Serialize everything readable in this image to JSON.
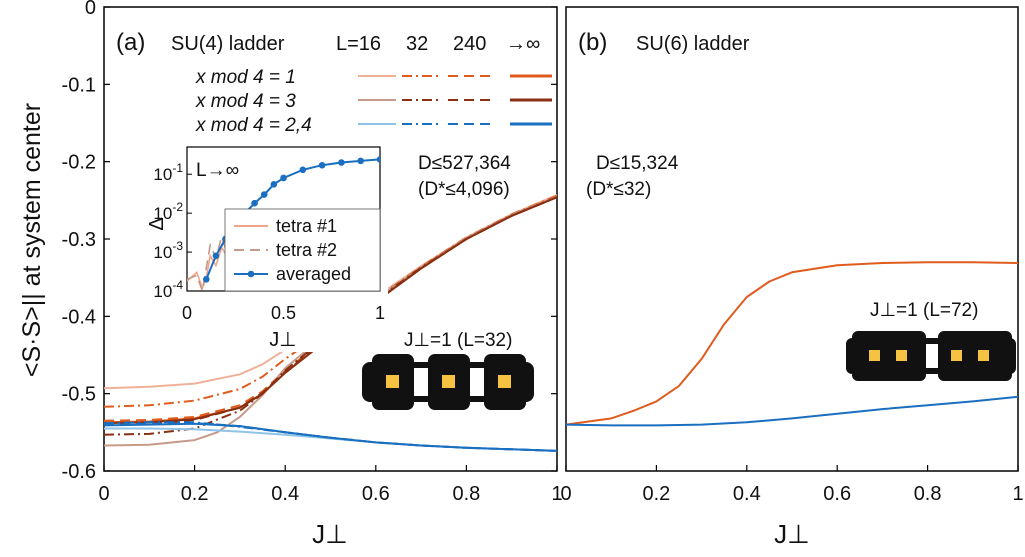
{
  "chart_data": [
    {
      "type": "line",
      "panel_label": "(a)",
      "model": "SU(4) ladder",
      "size_header": [
        "L=16",
        "32",
        "240",
        "→∞"
      ],
      "legend_rows": [
        {
          "label": "x mod 4 = 1",
          "color": "#e05c1e",
          "light_color": "#f0b199"
        },
        {
          "label": "x mod 4 = 3",
          "color": "#8a2f12",
          "light_color": "#c79a8a"
        },
        {
          "label": "x mod 4 = 2,4",
          "color": "#1a6fc0",
          "light_color": "#8ec3ea"
        }
      ],
      "xlabel": "J⊥",
      "ylabel": "<S·S>|| at system center",
      "xlim": [
        0,
        1
      ],
      "ylim": [
        -0.6,
        0
      ],
      "x_ticks": [
        "0",
        "0.2",
        "0.4",
        "0.6",
        "0.8",
        "1"
      ],
      "y_ticks": [
        "0",
        "-0.1",
        "-0.2",
        "-0.3",
        "-0.4",
        "-0.5",
        "-0.6"
      ],
      "annotation_D": "D≤527,364",
      "annotation_Dstar": "(D*≤4,096)",
      "figure_label": "J⊥=1 (L=32)",
      "series": [
        {
          "name": "x mod 4 = 1, L=16",
          "style": "solid",
          "color": "#f0b199",
          "x": [
            0,
            0.1,
            0.2,
            0.3,
            0.35,
            0.4,
            0.5,
            0.6,
            0.7,
            0.8,
            0.9,
            1.0
          ],
          "y": [
            -0.493,
            -0.491,
            -0.487,
            -0.475,
            -0.462,
            -0.443,
            -0.41,
            -0.375,
            -0.335,
            -0.298,
            -0.268,
            -0.243
          ]
        },
        {
          "name": "x mod 4 = 1, L=32",
          "style": "dashdot",
          "color": "#e05c1e",
          "x": [
            0,
            0.1,
            0.2,
            0.3,
            0.35,
            0.4,
            0.5,
            0.6,
            0.7,
            0.8,
            0.9,
            1.0
          ],
          "y": [
            -0.517,
            -0.515,
            -0.509,
            -0.494,
            -0.478,
            -0.455,
            -0.415,
            -0.377,
            -0.336,
            -0.298,
            -0.268,
            -0.244
          ]
        },
        {
          "name": "x mod 4 = 1, L=240",
          "style": "dashed",
          "color": "#e05c1e",
          "x": [
            0,
            0.1,
            0.2,
            0.3,
            0.35,
            0.4,
            0.5,
            0.6,
            0.7,
            0.8,
            0.9,
            1.0
          ],
          "y": [
            -0.535,
            -0.534,
            -0.53,
            -0.515,
            -0.497,
            -0.47,
            -0.425,
            -0.38,
            -0.337,
            -0.299,
            -0.269,
            -0.245
          ]
        },
        {
          "name": "x mod 4 = 1, L→∞",
          "style": "solid",
          "color": "#e05c1e",
          "x": [
            0,
            0.1,
            0.2,
            0.3,
            0.35,
            0.4,
            0.5,
            0.6,
            0.7,
            0.8,
            0.9,
            1.0
          ],
          "y": [
            -0.537,
            -0.536,
            -0.532,
            -0.518,
            -0.5,
            -0.473,
            -0.427,
            -0.381,
            -0.338,
            -0.3,
            -0.27,
            -0.246
          ]
        },
        {
          "name": "x mod 4 = 3, L=16",
          "style": "solid",
          "color": "#c79a8a",
          "x": [
            0,
            0.1,
            0.2,
            0.25,
            0.3,
            0.35,
            0.4,
            0.5,
            0.6,
            0.7,
            0.8,
            0.9,
            1.0
          ],
          "y": [
            -0.567,
            -0.566,
            -0.56,
            -0.55,
            -0.53,
            -0.502,
            -0.467,
            -0.418,
            -0.378,
            -0.337,
            -0.299,
            -0.269,
            -0.245
          ]
        },
        {
          "name": "x mod 4 = 3, L=32",
          "style": "dashdot",
          "color": "#8a2f12",
          "x": [
            0,
            0.1,
            0.2,
            0.3,
            0.35,
            0.4,
            0.5,
            0.6,
            0.7,
            0.8,
            0.9,
            1.0
          ],
          "y": [
            -0.553,
            -0.552,
            -0.545,
            -0.522,
            -0.5,
            -0.47,
            -0.422,
            -0.379,
            -0.337,
            -0.3,
            -0.27,
            -0.246
          ]
        },
        {
          "name": "x mod 4 = 3, L=240",
          "style": "dashed",
          "color": "#8a2f12",
          "x": [
            0,
            0.1,
            0.2,
            0.3,
            0.35,
            0.4,
            0.5,
            0.6,
            0.7,
            0.8,
            0.9,
            1.0
          ],
          "y": [
            -0.54,
            -0.539,
            -0.534,
            -0.518,
            -0.499,
            -0.472,
            -0.426,
            -0.381,
            -0.338,
            -0.3,
            -0.27,
            -0.246
          ]
        },
        {
          "name": "x mod 4 = 3, L→∞",
          "style": "solid",
          "color": "#8a2f12",
          "x": [
            0,
            0.1,
            0.2,
            0.3,
            0.35,
            0.4,
            0.5,
            0.6,
            0.7,
            0.8,
            0.9,
            1.0
          ],
          "y": [
            -0.538,
            -0.537,
            -0.533,
            -0.518,
            -0.5,
            -0.473,
            -0.427,
            -0.381,
            -0.338,
            -0.3,
            -0.27,
            -0.246
          ]
        },
        {
          "name": "x mod 4 = 2,4, L=16",
          "style": "solid",
          "color": "#8ec3ea",
          "x": [
            0,
            0.1,
            0.2,
            0.3,
            0.4,
            0.5,
            0.6,
            0.7,
            0.8,
            0.9,
            1.0
          ],
          "y": [
            -0.545,
            -0.545,
            -0.546,
            -0.549,
            -0.553,
            -0.558,
            -0.563,
            -0.567,
            -0.57,
            -0.572,
            -0.574
          ]
        },
        {
          "name": "x mod 4 = 2,4, L=32",
          "style": "dashdot",
          "color": "#1a6fc0",
          "x": [
            0,
            0.1,
            0.2,
            0.3,
            0.4,
            0.5,
            0.6,
            0.7,
            0.8,
            0.9,
            1.0
          ],
          "y": [
            -0.538,
            -0.537,
            -0.537,
            -0.543,
            -0.55,
            -0.557,
            -0.563,
            -0.567,
            -0.57,
            -0.572,
            -0.574
          ]
        },
        {
          "name": "x mod 4 = 2,4, L=240",
          "style": "dashed",
          "color": "#1a6fc0",
          "x": [
            0,
            0.1,
            0.2,
            0.3,
            0.4,
            0.5,
            0.6,
            0.7,
            0.8,
            0.9,
            1.0
          ],
          "y": [
            -0.54,
            -0.539,
            -0.538,
            -0.542,
            -0.55,
            -0.557,
            -0.563,
            -0.567,
            -0.57,
            -0.572,
            -0.574
          ]
        },
        {
          "name": "x mod 4 = 2,4, L→∞",
          "style": "solid",
          "color": "#1a6fc0",
          "x": [
            0,
            0.1,
            0.2,
            0.3,
            0.4,
            0.5,
            0.6,
            0.7,
            0.8,
            0.9,
            1.0
          ],
          "y": [
            -0.541,
            -0.54,
            -0.539,
            -0.542,
            -0.55,
            -0.557,
            -0.563,
            -0.567,
            -0.57,
            -0.572,
            -0.574
          ]
        }
      ],
      "inset": {
        "type": "line",
        "title": "L→∞",
        "xlabel": "J⊥",
        "ylabel": "Δ",
        "yscale": "log",
        "xlim": [
          0,
          1
        ],
        "ylim": [
          0.0001,
          0.5
        ],
        "x_ticks": [
          "0",
          "0.5",
          "1"
        ],
        "y_ticks": [
          "10-4",
          "10-3",
          "10-2",
          "10-1"
        ],
        "series": [
          {
            "name": "tetra #1",
            "style": "solid",
            "color": "#f0a58a",
            "x": [
              0.0,
              0.05,
              0.08,
              0.1,
              0.12,
              0.15,
              0.18,
              0.2,
              0.23,
              0.25,
              0.28,
              0.3
            ],
            "y": [
              0.00018,
              0.0003,
              0.00012,
              0.00022,
              0.0008,
              0.00045,
              0.0013,
              0.0009,
              0.0025,
              0.0013,
              0.0045,
              0.003
            ]
          },
          {
            "name": "tetra #2",
            "style": "dashed",
            "color": "#c49a88",
            "x": [
              0.0,
              0.05,
              0.08,
              0.1,
              0.12,
              0.15,
              0.18,
              0.2,
              0.23,
              0.25,
              0.28,
              0.3
            ],
            "y": [
              0.0002,
              0.00025,
              0.0001,
              0.0004,
              0.0015,
              0.0007,
              0.0025,
              0.0012,
              0.0035,
              0.002,
              0.006,
              0.004
            ]
          },
          {
            "name": "averaged",
            "style": "solid-marker",
            "color": "#1a6fc0",
            "x": [
              0.1,
              0.15,
              0.2,
              0.25,
              0.3,
              0.35,
              0.4,
              0.45,
              0.5,
              0.6,
              0.7,
              0.8,
              0.9,
              1.0
            ],
            "y": [
              0.0002,
              0.0008,
              0.0022,
              0.005,
              0.01,
              0.018,
              0.03,
              0.055,
              0.08,
              0.13,
              0.17,
              0.2,
              0.22,
              0.24
            ]
          }
        ]
      }
    },
    {
      "type": "line",
      "panel_label": "(b)",
      "model": "SU(6) ladder",
      "xlabel": "J⊥",
      "xlim": [
        0,
        1
      ],
      "ylim": [
        -0.6,
        0
      ],
      "x_ticks": [
        "0",
        "0.2",
        "0.4",
        "0.6",
        "0.8",
        "1"
      ],
      "annotation_D": "D≤15,324",
      "annotation_Dstar": "(D*≤32)",
      "figure_label": "J⊥=1 (L=72)",
      "series": [
        {
          "name": "orange",
          "style": "solid",
          "color": "#e05c1e",
          "x": [
            0,
            0.1,
            0.15,
            0.2,
            0.25,
            0.3,
            0.35,
            0.4,
            0.45,
            0.5,
            0.6,
            0.7,
            0.8,
            0.9,
            1.0
          ],
          "y": [
            -0.54,
            -0.532,
            -0.522,
            -0.51,
            -0.49,
            -0.455,
            -0.41,
            -0.375,
            -0.355,
            -0.343,
            -0.334,
            -0.331,
            -0.33,
            -0.33,
            -0.331
          ]
        },
        {
          "name": "blue",
          "style": "solid",
          "color": "#1a6fc0",
          "x": [
            0,
            0.1,
            0.2,
            0.3,
            0.4,
            0.5,
            0.6,
            0.7,
            0.8,
            0.9,
            1.0
          ],
          "y": [
            -0.54,
            -0.541,
            -0.541,
            -0.54,
            -0.537,
            -0.532,
            -0.526,
            -0.52,
            -0.515,
            -0.51,
            -0.504
          ]
        }
      ]
    }
  ]
}
